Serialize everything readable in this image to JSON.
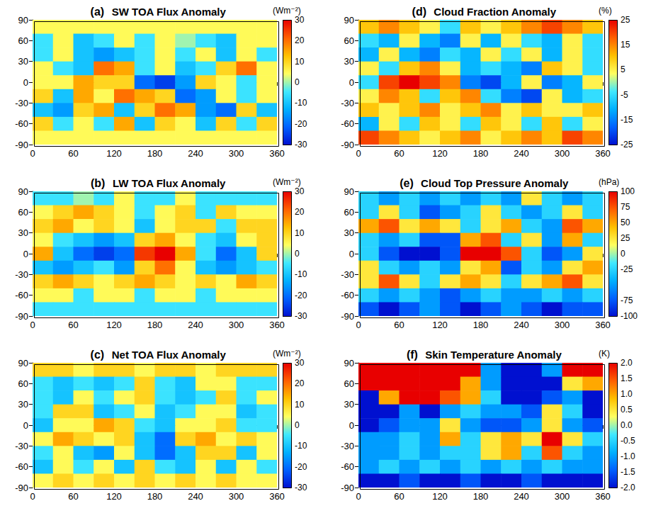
{
  "chart_data": [
    {
      "type": "heatmap",
      "label": "(a)",
      "title": "SW TOA Flux Anomaly",
      "x": [
        15,
        45,
        75,
        105,
        135,
        165,
        195,
        225,
        255,
        285,
        315,
        345
      ],
      "y": [
        80,
        60,
        40,
        20,
        0,
        -20,
        -40,
        -60,
        -80
      ],
      "values": [
        [
          5,
          5,
          5,
          5,
          5,
          5,
          5,
          5,
          5,
          5,
          5,
          5
        ],
        [
          -5,
          5,
          -10,
          -5,
          5,
          -5,
          5,
          0,
          -5,
          -10,
          5,
          5
        ],
        [
          -5,
          5,
          -10,
          -15,
          -10,
          -5,
          5,
          -5,
          5,
          -10,
          5,
          -5
        ],
        [
          5,
          -5,
          -10,
          20,
          15,
          -5,
          5,
          -10,
          -5,
          10,
          20,
          5
        ],
        [
          5,
          5,
          15,
          10,
          10,
          -20,
          -25,
          -15,
          10,
          5,
          -5,
          5
        ],
        [
          10,
          -10,
          15,
          5,
          20,
          15,
          10,
          -20,
          -15,
          5,
          -5,
          5
        ],
        [
          -10,
          -15,
          10,
          15,
          -10,
          10,
          20,
          15,
          -15,
          -20,
          10,
          -10
        ],
        [
          10,
          -5,
          5,
          -5,
          15,
          -10,
          10,
          5,
          -10,
          10,
          -5,
          10
        ],
        [
          5,
          5,
          5,
          5,
          5,
          5,
          5,
          5,
          5,
          5,
          5,
          5
        ]
      ],
      "xlim": [
        0,
        360
      ],
      "xticks": [
        0,
        60,
        120,
        180,
        240,
        300,
        360
      ],
      "ylim": [
        -90,
        90
      ],
      "yticks": [
        -90,
        -60,
        -30,
        0,
        30,
        60,
        90
      ],
      "colorbar": {
        "label": "(Wm⁻²)",
        "range": [
          -30,
          30
        ],
        "ticks": [
          -30,
          -20,
          -10,
          0,
          10,
          20,
          30
        ]
      },
      "grid": false
    },
    {
      "type": "heatmap",
      "label": "(b)",
      "title": "LW TOA Flux Anomaly",
      "x": [
        15,
        45,
        75,
        105,
        135,
        165,
        195,
        225,
        255,
        285,
        315,
        345
      ],
      "y": [
        80,
        60,
        40,
        20,
        0,
        -20,
        -40,
        -60,
        -80
      ],
      "values": [
        [
          -5,
          -5,
          0,
          -5,
          5,
          -5,
          -5,
          5,
          -5,
          -5,
          -5,
          -5
        ],
        [
          5,
          10,
          15,
          10,
          5,
          -5,
          5,
          10,
          -5,
          10,
          5,
          5
        ],
        [
          10,
          15,
          5,
          10,
          5,
          -10,
          5,
          10,
          10,
          -5,
          10,
          10
        ],
        [
          5,
          -5,
          -10,
          -15,
          -10,
          10,
          15,
          5,
          -5,
          -10,
          5,
          10
        ],
        [
          15,
          -10,
          -20,
          -25,
          -20,
          25,
          30,
          15,
          -5,
          -20,
          -10,
          10
        ],
        [
          -10,
          -15,
          -10,
          -5,
          -15,
          10,
          20,
          5,
          -10,
          -15,
          -10,
          -5
        ],
        [
          10,
          15,
          10,
          5,
          10,
          15,
          10,
          5,
          10,
          5,
          15,
          10
        ],
        [
          5,
          5,
          -5,
          5,
          5,
          -5,
          5,
          5,
          -5,
          5,
          5,
          5
        ],
        [
          -5,
          -5,
          -5,
          -5,
          -5,
          -5,
          -5,
          -5,
          -5,
          -5,
          -5,
          -5
        ]
      ],
      "xlim": [
        0,
        360
      ],
      "xticks": [
        0,
        60,
        120,
        180,
        240,
        300,
        360
      ],
      "ylim": [
        -90,
        90
      ],
      "yticks": [
        -90,
        -60,
        -30,
        0,
        30,
        60,
        90
      ],
      "colorbar": {
        "label": "(Wm⁻²)",
        "range": [
          -30,
          30
        ],
        "ticks": [
          -30,
          -20,
          -10,
          0,
          10,
          20,
          30
        ]
      },
      "grid": false
    },
    {
      "type": "heatmap",
      "label": "(c)",
      "title": "Net TOA Flux Anomaly",
      "x": [
        15,
        45,
        75,
        105,
        135,
        165,
        195,
        225,
        255,
        285,
        315,
        345
      ],
      "y": [
        80,
        60,
        40,
        20,
        0,
        -20,
        -40,
        -60,
        -80
      ],
      "values": [
        [
          10,
          10,
          5,
          10,
          10,
          5,
          10,
          10,
          5,
          10,
          10,
          10
        ],
        [
          -5,
          -10,
          -5,
          -10,
          -5,
          10,
          -5,
          -10,
          5,
          5,
          -5,
          -5
        ],
        [
          -5,
          -10,
          5,
          -5,
          5,
          10,
          -5,
          -10,
          -5,
          10,
          -5,
          5
        ],
        [
          -5,
          10,
          10,
          -10,
          -5,
          5,
          -10,
          -5,
          5,
          5,
          -10,
          -5
        ],
        [
          -10,
          5,
          5,
          15,
          10,
          -5,
          -10,
          5,
          5,
          10,
          -5,
          -5
        ],
        [
          5,
          15,
          10,
          5,
          10,
          -10,
          -20,
          10,
          15,
          5,
          10,
          5
        ],
        [
          -5,
          5,
          -10,
          -15,
          5,
          -10,
          -20,
          -10,
          10,
          10,
          -10,
          5
        ],
        [
          -10,
          5,
          -5,
          5,
          -10,
          10,
          -5,
          -10,
          5,
          -10,
          5,
          -5
        ],
        [
          5,
          10,
          5,
          10,
          5,
          10,
          5,
          10,
          5,
          10,
          5,
          5
        ]
      ],
      "xlim": [
        0,
        360
      ],
      "xticks": [
        0,
        60,
        120,
        180,
        240,
        300,
        360
      ],
      "ylim": [
        -90,
        90
      ],
      "yticks": [
        -90,
        -60,
        -30,
        0,
        30,
        60,
        90
      ],
      "colorbar": {
        "label": "(Wm⁻²)",
        "range": [
          -30,
          30
        ],
        "ticks": [
          -30,
          -20,
          -10,
          0,
          10,
          20,
          30
        ]
      },
      "grid": false
    },
    {
      "type": "heatmap",
      "label": "(d)",
      "title": "Cloud Fraction Anomaly",
      "x": [
        15,
        45,
        75,
        105,
        135,
        165,
        195,
        225,
        255,
        285,
        315,
        345
      ],
      "y": [
        80,
        60,
        40,
        20,
        0,
        -20,
        -40,
        -60,
        -80
      ],
      "values": [
        [
          10,
          15,
          10,
          5,
          -5,
          10,
          5,
          10,
          15,
          20,
          15,
          10
        ],
        [
          -5,
          -10,
          5,
          -10,
          -15,
          5,
          -10,
          5,
          -5,
          -10,
          5,
          -5
        ],
        [
          -10,
          5,
          -10,
          -15,
          -5,
          -10,
          5,
          -5,
          5,
          -10,
          5,
          -5
        ],
        [
          5,
          -5,
          10,
          15,
          5,
          -10,
          -5,
          -10,
          -15,
          10,
          5,
          -5
        ],
        [
          -5,
          20,
          25,
          20,
          15,
          -15,
          -20,
          -10,
          5,
          -15,
          -10,
          5
        ],
        [
          5,
          15,
          10,
          -5,
          10,
          15,
          -5,
          -15,
          -20,
          5,
          -10,
          -5
        ],
        [
          10,
          5,
          10,
          15,
          5,
          10,
          15,
          5,
          10,
          5,
          5,
          10
        ],
        [
          -10,
          5,
          -5,
          10,
          5,
          -5,
          10,
          5,
          -5,
          10,
          -5,
          5
        ],
        [
          20,
          15,
          10,
          5,
          10,
          15,
          5,
          10,
          15,
          10,
          20,
          15
        ]
      ],
      "xlim": [
        0,
        360
      ],
      "xticks": [
        0,
        60,
        120,
        180,
        240,
        300,
        360
      ],
      "ylim": [
        -90,
        90
      ],
      "yticks": [
        -90,
        -60,
        -30,
        0,
        30,
        60,
        90
      ],
      "colorbar": {
        "label": "(%)",
        "range": [
          -25,
          25
        ],
        "ticks": [
          -25,
          -15,
          -5,
          5,
          15,
          25
        ]
      },
      "grid": false
    },
    {
      "type": "heatmap",
      "label": "(e)",
      "title": "Cloud Top Pressure Anomaly",
      "x": [
        15,
        45,
        75,
        105,
        135,
        165,
        195,
        225,
        255,
        285,
        315,
        345
      ],
      "y": [
        80,
        60,
        40,
        20,
        0,
        -20,
        -40,
        -60,
        -80
      ],
      "values": [
        [
          -25,
          -50,
          -25,
          -50,
          -25,
          -50,
          -25,
          -50,
          25,
          -25,
          -50,
          -25
        ],
        [
          -25,
          25,
          -25,
          -75,
          -50,
          -25,
          25,
          -25,
          -50,
          -25,
          25,
          -25
        ],
        [
          50,
          75,
          25,
          50,
          25,
          -25,
          25,
          50,
          -25,
          -50,
          75,
          50
        ],
        [
          -25,
          -50,
          -25,
          -75,
          -75,
          50,
          75,
          -25,
          25,
          -50,
          50,
          -25
        ],
        [
          -25,
          -75,
          -100,
          -100,
          -75,
          100,
          100,
          75,
          -25,
          -75,
          -50,
          25
        ],
        [
          25,
          -25,
          -50,
          -25,
          -50,
          25,
          50,
          -75,
          -25,
          -50,
          25,
          50
        ],
        [
          25,
          75,
          25,
          -25,
          25,
          50,
          25,
          -25,
          25,
          50,
          75,
          25
        ],
        [
          -25,
          -50,
          -25,
          -50,
          -75,
          -50,
          -25,
          -50,
          -50,
          -25,
          -50,
          -25
        ],
        [
          -75,
          -100,
          -75,
          -50,
          -75,
          -100,
          -75,
          -50,
          -75,
          -100,
          -75,
          -75
        ]
      ],
      "xlim": [
        0,
        360
      ],
      "xticks": [
        0,
        60,
        120,
        180,
        240,
        300,
        360
      ],
      "ylim": [
        -90,
        90
      ],
      "yticks": [
        -90,
        -60,
        -30,
        0,
        30,
        60,
        90
      ],
      "colorbar": {
        "label": "(hPa)",
        "range": [
          -100,
          100
        ],
        "ticks": [
          -100,
          -75,
          -25,
          0,
          25,
          50,
          75,
          100
        ]
      },
      "grid": false
    },
    {
      "type": "heatmap",
      "label": "(f)",
      "title": "Skin Temperature Anomaly",
      "x": [
        15,
        45,
        75,
        105,
        135,
        165,
        195,
        225,
        255,
        285,
        315,
        345
      ],
      "y": [
        80,
        60,
        40,
        20,
        0,
        -20,
        -40,
        -60,
        -80
      ],
      "values": [
        [
          2,
          2,
          2,
          2,
          2,
          2,
          -1,
          -2,
          -2,
          -1,
          2,
          2
        ],
        [
          2,
          2,
          2,
          2,
          2,
          1,
          -1,
          -2,
          -2,
          -2,
          0.5,
          1
        ],
        [
          -2,
          1,
          2,
          2,
          1.5,
          1,
          -0.5,
          -2,
          -2,
          -1.5,
          -1,
          -2
        ],
        [
          -2,
          -2,
          -1,
          -2,
          -1,
          -0.5,
          -1,
          -1,
          -1.5,
          0.5,
          -0.5,
          -2
        ],
        [
          -2,
          -1.5,
          -1,
          -1,
          0.5,
          -1,
          -1.5,
          -1.5,
          -1,
          0.5,
          -1,
          -1.5
        ],
        [
          -1,
          -1,
          -0.5,
          -1,
          1,
          -0.5,
          0.5,
          1,
          0.5,
          2,
          0.5,
          -0.5
        ],
        [
          -1,
          -1,
          -0.5,
          -1,
          -0.5,
          -0.5,
          0.5,
          1,
          -0.5,
          1.5,
          -0.5,
          -1
        ],
        [
          -1,
          -0.5,
          -1,
          -0.5,
          -1,
          -0.5,
          -1,
          -0.5,
          -1,
          -0.5,
          -1,
          -1
        ],
        [
          -2,
          -2,
          -1.5,
          -2,
          -2,
          -1.5,
          -2,
          -2,
          -1.5,
          -2,
          -2,
          -2
        ]
      ],
      "xlim": [
        0,
        360
      ],
      "xticks": [
        0,
        60,
        120,
        180,
        240,
        300,
        360
      ],
      "ylim": [
        -90,
        90
      ],
      "yticks": [
        -90,
        -60,
        -30,
        0,
        30,
        60,
        90
      ],
      "colorbar": {
        "label": "(K)",
        "range": [
          -2,
          2
        ],
        "ticks": [
          {
            "value": -2,
            "label": "-2.0"
          },
          {
            "value": -1.5,
            "label": "-1.5"
          },
          {
            "value": -1,
            "label": "-1.0"
          },
          {
            "value": -0.5,
            "label": "-0.5"
          },
          {
            "value": 0,
            "label": "0.0"
          },
          {
            "value": 0.5,
            "label": "0.5"
          },
          {
            "value": 1,
            "label": "1.0"
          },
          {
            "value": 1.5,
            "label": "1.5"
          },
          {
            "value": 2,
            "label": "2.0"
          }
        ]
      },
      "grid": false
    }
  ]
}
